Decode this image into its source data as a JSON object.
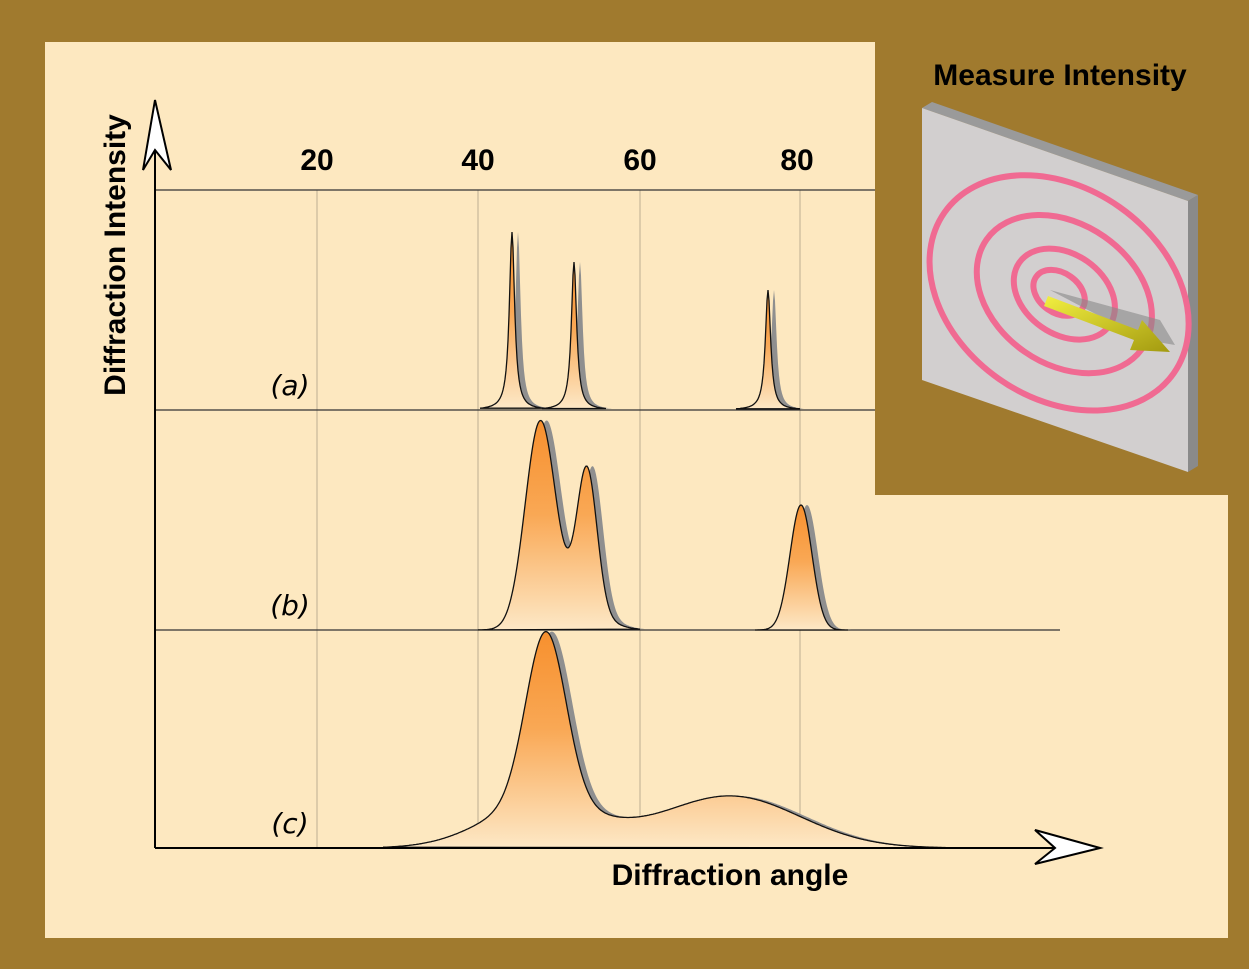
{
  "title": "Measure Intensity",
  "y_axis_label": "Diffraction Intensity",
  "x_axis_label": "Diffraction angle",
  "axis_ticks": [
    "20",
    "40",
    "60",
    "80"
  ],
  "patterns": [
    "(a)",
    "(b)",
    "(c)"
  ]
}
